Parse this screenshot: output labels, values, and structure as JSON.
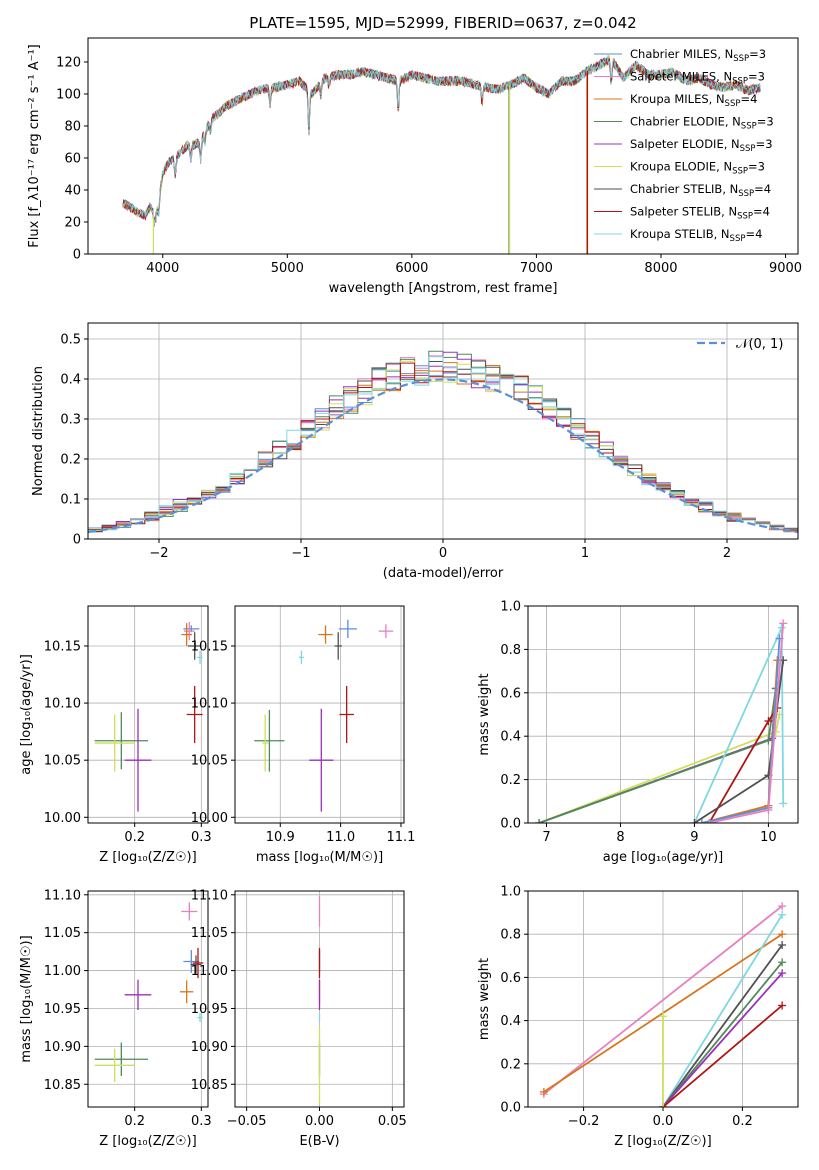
{
  "colors": {
    "Chabrier MILES": "#5b8fd8",
    "Salpeter MILES": "#e87fbf",
    "Kroupa MILES": "#d9761a",
    "Chabrier ELODIE": "#4f8a5a",
    "Salpeter ELODIE": "#9b30b8",
    "Kroupa ELODIE": "#cde05a",
    "Chabrier STELIB": "#505050",
    "Salpeter STELIB": "#b01515",
    "Kroupa STELIB": "#7fd7e0",
    "gaussian": "#5b8fd8",
    "grid": "#b0b0b0"
  },
  "chart_data": [
    {
      "id": "spectrum",
      "type": "line",
      "title": "PLATE=1595, MJD=52999, FIBERID=0637, z=0.042",
      "xlabel": "wavelength [Angstrom, rest frame]",
      "ylabel": "Flux [f_λ10⁻¹⁷ erg cm⁻² s⁻¹ A⁻¹]",
      "xlim": [
        3400,
        9100
      ],
      "ylim": [
        0,
        135
      ],
      "xticks": [
        4000,
        5000,
        6000,
        7000,
        8000,
        9000
      ],
      "yticks": [
        0,
        20,
        40,
        60,
        80,
        100,
        120
      ],
      "grid": false,
      "legend_position": "top-right",
      "legend": [
        {
          "model": "Chabrier MILES",
          "label": "Chabrier MILES, N",
          "sub": "SSP",
          "suffix": "=3"
        },
        {
          "model": "Salpeter MILES",
          "label": "Salpeter MILES, N",
          "sub": "SSP",
          "suffix": "=3"
        },
        {
          "model": "Kroupa MILES",
          "label": "Kroupa MILES, N",
          "sub": "SSP",
          "suffix": "=4"
        },
        {
          "model": "Chabrier ELODIE",
          "label": "Chabrier ELODIE, N",
          "sub": "SSP",
          "suffix": "=3"
        },
        {
          "model": "Salpeter ELODIE",
          "label": "Salpeter ELODIE, N",
          "sub": "SSP",
          "suffix": "=3"
        },
        {
          "model": "Kroupa ELODIE",
          "label": "Kroupa ELODIE, N",
          "sub": "SSP",
          "suffix": "=3"
        },
        {
          "model": "Chabrier STELIB",
          "label": "Chabrier STELIB, N",
          "sub": "SSP",
          "suffix": "=4"
        },
        {
          "model": "Salpeter STELIB",
          "label": "Salpeter STELIB, N",
          "sub": "SSP",
          "suffix": "=4"
        },
        {
          "model": "Kroupa STELIB",
          "label": "Kroupa STELIB, N",
          "sub": "SSP",
          "suffix": "=4"
        }
      ],
      "continuum": [
        [
          3680,
          32
        ],
        [
          3720,
          30
        ],
        [
          3760,
          28
        ],
        [
          3800,
          26
        ],
        [
          3860,
          24
        ],
        [
          3900,
          30
        ],
        [
          3940,
          22
        ],
        [
          3960,
          30
        ],
        [
          4000,
          50
        ],
        [
          4050,
          58
        ],
        [
          4100,
          60
        ],
        [
          4150,
          64
        ],
        [
          4200,
          68
        ],
        [
          4250,
          68
        ],
        [
          4300,
          70
        ],
        [
          4350,
          78
        ],
        [
          4400,
          85
        ],
        [
          4450,
          88
        ],
        [
          4500,
          92
        ],
        [
          4600,
          96
        ],
        [
          4700,
          100
        ],
        [
          4800,
          103
        ],
        [
          4900,
          104
        ],
        [
          5000,
          106
        ],
        [
          5100,
          108
        ],
        [
          5200,
          100
        ],
        [
          5300,
          110
        ],
        [
          5400,
          112
        ],
        [
          5500,
          112
        ],
        [
          5600,
          114
        ],
        [
          5700,
          112
        ],
        [
          5800,
          110
        ],
        [
          5900,
          108
        ],
        [
          6000,
          112
        ],
        [
          6100,
          110
        ],
        [
          6200,
          108
        ],
        [
          6300,
          108
        ],
        [
          6400,
          108
        ],
        [
          6500,
          106
        ],
        [
          6600,
          104
        ],
        [
          6700,
          103
        ],
        [
          6800,
          106
        ],
        [
          6900,
          110
        ],
        [
          7000,
          104
        ],
        [
          7100,
          100
        ],
        [
          7200,
          108
        ],
        [
          7300,
          108
        ],
        [
          7400,
          114
        ],
        [
          7500,
          118
        ],
        [
          7600,
          122
        ],
        [
          7700,
          110
        ],
        [
          7800,
          118
        ],
        [
          7900,
          112
        ],
        [
          8000,
          112
        ],
        [
          8100,
          114
        ],
        [
          8200,
          108
        ],
        [
          8300,
          110
        ],
        [
          8400,
          106
        ],
        [
          8500,
          104
        ],
        [
          8600,
          106
        ],
        [
          8700,
          102
        ],
        [
          8800,
          104
        ]
      ],
      "absorption": [
        [
          3934,
          4
        ],
        [
          3968,
          8
        ],
        [
          4101,
          10
        ],
        [
          4226,
          8
        ],
        [
          4305,
          12
        ],
        [
          4340,
          6
        ],
        [
          4384,
          6
        ],
        [
          4861,
          10
        ],
        [
          5173,
          26
        ],
        [
          5270,
          8
        ],
        [
          5335,
          6
        ],
        [
          5890,
          20
        ],
        [
          6563,
          10
        ],
        [
          7600,
          14
        ]
      ],
      "dropouts": [
        {
          "model": "Kroupa ELODIE",
          "x": 3925,
          "y": 0
        },
        {
          "model": "Chabrier ELODIE",
          "x": 6780,
          "y": 0
        },
        {
          "model": "Kroupa ELODIE",
          "x": 6785,
          "y": 0
        },
        {
          "model": "Kroupa MILES",
          "x": 7405,
          "y": 0
        },
        {
          "model": "Salpeter STELIB",
          "x": 7410,
          "y": 0
        }
      ]
    },
    {
      "id": "residuals",
      "type": "bar",
      "xlabel": "(data-model)/error",
      "ylabel": "Normed distribution",
      "xlim": [
        -2.5,
        2.5
      ],
      "ylim": [
        0,
        0.54
      ],
      "xticks": [
        -2,
        -1,
        0,
        1,
        2
      ],
      "yticks": [
        0.0,
        0.1,
        0.2,
        0.3,
        0.4,
        0.5
      ],
      "grid": true,
      "legend_position": "top-right",
      "gaussian_label": "𝒩(0, 1)",
      "bin_width": 0.1,
      "bin_start": -2.5
    },
    {
      "id": "age-vs-Z",
      "type": "scatter",
      "xlabel": "Z [log₁₀(Z/Z☉)]",
      "ylabel": "age  [log₁₀(age/yr)]",
      "xlim": [
        0.13,
        0.31
      ],
      "ylim": [
        9.995,
        10.185
      ],
      "xticks": [
        0.2,
        0.3
      ],
      "yticks": [
        10.0,
        10.05,
        10.1,
        10.15
      ],
      "grid": true,
      "points": [
        {
          "model": "Chabrier MILES",
          "x": 0.285,
          "y": 10.165,
          "xerr": 0.012,
          "yerr": 0.003
        },
        {
          "model": "Salpeter MILES",
          "x": 0.282,
          "y": 10.163,
          "xerr": 0.008,
          "yerr": 0.008
        },
        {
          "model": "Kroupa MILES",
          "x": 0.278,
          "y": 10.16,
          "xerr": 0.008,
          "yerr": 0.01
        },
        {
          "model": "Chabrier STELIB",
          "x": 0.29,
          "y": 10.15,
          "xerr": 0.01,
          "yerr": 0.012
        },
        {
          "model": "Kroupa STELIB",
          "x": 0.298,
          "y": 10.14,
          "xerr": 0.004,
          "yerr": 0.006
        },
        {
          "model": "Salpeter STELIB",
          "x": 0.29,
          "y": 10.09,
          "xerr": 0.012,
          "yerr": 0.025
        },
        {
          "model": "Chabrier ELODIE",
          "x": 0.18,
          "y": 10.067,
          "xerr": 0.04,
          "yerr": 0.025
        },
        {
          "model": "Kroupa ELODIE",
          "x": 0.17,
          "y": 10.065,
          "xerr": 0.03,
          "yerr": 0.025
        },
        {
          "model": "Salpeter ELODIE",
          "x": 0.205,
          "y": 10.05,
          "xerr": 0.02,
          "yerr": 0.045
        }
      ]
    },
    {
      "id": "age-vs-mass",
      "type": "scatter",
      "xlabel": "mass [log₁₀(M/M☉)]",
      "ylabel": "",
      "xlim": [
        10.825,
        11.105
      ],
      "ylim": [
        9.995,
        10.185
      ],
      "xticks": [
        10.9,
        11.0,
        11.1
      ],
      "yticks": [
        10.0,
        10.05,
        10.1,
        10.15
      ],
      "grid": true,
      "points": [
        {
          "model": "Salpeter MILES",
          "x": 11.075,
          "y": 10.163,
          "xerr": 0.012,
          "yerr": 0.006
        },
        {
          "model": "Chabrier MILES",
          "x": 11.012,
          "y": 10.165,
          "xerr": 0.015,
          "yerr": 0.008
        },
        {
          "model": "Kroupa MILES",
          "x": 10.975,
          "y": 10.16,
          "xerr": 0.012,
          "yerr": 0.008
        },
        {
          "model": "Chabrier STELIB",
          "x": 10.996,
          "y": 10.15,
          "xerr": 0.006,
          "yerr": 0.012
        },
        {
          "model": "Kroupa STELIB",
          "x": 10.935,
          "y": 10.14,
          "xerr": 0.004,
          "yerr": 0.006
        },
        {
          "model": "Salpeter STELIB",
          "x": 11.01,
          "y": 10.09,
          "xerr": 0.012,
          "yerr": 0.025
        },
        {
          "model": "Chabrier ELODIE",
          "x": 10.882,
          "y": 10.067,
          "xerr": 0.025,
          "yerr": 0.027
        },
        {
          "model": "Kroupa ELODIE",
          "x": 10.875,
          "y": 10.065,
          "xerr": 0.005,
          "yerr": 0.025
        },
        {
          "model": "Salpeter ELODIE",
          "x": 10.968,
          "y": 10.05,
          "xerr": 0.02,
          "yerr": 0.045
        }
      ]
    },
    {
      "id": "massweight-vs-age",
      "type": "line",
      "xlabel": "age  [log₁₀(age/yr)]",
      "ylabel": "mass weight",
      "xlim": [
        6.75,
        10.4
      ],
      "ylim": [
        0,
        1
      ],
      "xticks": [
        7,
        8,
        9,
        10
      ],
      "yticks": [
        0.0,
        0.2,
        0.4,
        0.6,
        0.8,
        1.0
      ],
      "grid": true,
      "series": [
        {
          "model": "Kroupa ELODIE",
          "points": [
            [
              6.9,
              0.0
            ],
            [
              10.1,
              0.42
            ],
            [
              10.15,
              0.5
            ]
          ]
        },
        {
          "model": "Salpeter ELODIE",
          "points": [
            [
              6.9,
              0.0
            ],
            [
              10.05,
              0.39
            ],
            [
              10.1,
              0.62
            ]
          ]
        },
        {
          "model": "Chabrier ELODIE",
          "points": [
            [
              6.9,
              0.0
            ],
            [
              10.0,
              0.38
            ],
            [
              10.1,
              0.62
            ]
          ]
        },
        {
          "model": "Kroupa STELIB",
          "points": [
            [
              9.0,
              0.0
            ],
            [
              10.18,
              0.9
            ],
            [
              10.2,
              0.09
            ]
          ]
        },
        {
          "model": "Salpeter STELIB",
          "points": [
            [
              9.2,
              0.0
            ],
            [
              10.0,
              0.47
            ],
            [
              10.12,
              0.53
            ]
          ]
        },
        {
          "model": "Chabrier STELIB",
          "points": [
            [
              9.0,
              0.0
            ],
            [
              10.0,
              0.22
            ],
            [
              10.2,
              0.75
            ]
          ]
        },
        {
          "model": "Kroupa MILES",
          "points": [
            [
              9.1,
              0.0
            ],
            [
              10.0,
              0.08
            ],
            [
              10.12,
              0.75
            ]
          ]
        },
        {
          "model": "Chabrier MILES",
          "points": [
            [
              9.1,
              0.0
            ],
            [
              10.0,
              0.07
            ],
            [
              10.15,
              0.85
            ]
          ]
        },
        {
          "model": "Salpeter MILES",
          "points": [
            [
              9.2,
              0.0
            ],
            [
              10.0,
              0.06
            ],
            [
              10.2,
              0.92
            ]
          ]
        }
      ]
    },
    {
      "id": "mass-vs-Z",
      "type": "scatter",
      "xlabel": "Z [log₁₀(Z/Z☉)]",
      "ylabel": "mass [log₁₀(M/M☉)]",
      "xlim": [
        0.13,
        0.31
      ],
      "ylim": [
        10.82,
        11.105
      ],
      "xticks": [
        0.2,
        0.3
      ],
      "yticks": [
        10.85,
        10.9,
        10.95,
        11.0,
        11.05,
        11.1
      ],
      "grid": true,
      "points": [
        {
          "model": "Salpeter MILES",
          "x": 0.282,
          "y": 11.078,
          "xerr": 0.012,
          "yerr": 0.012
        },
        {
          "model": "Chabrier MILES",
          "x": 0.285,
          "y": 11.012,
          "xerr": 0.012,
          "yerr": 0.015
        },
        {
          "model": "Chabrier STELIB",
          "x": 0.292,
          "y": 11.008,
          "xerr": 0.008,
          "yerr": 0.012
        },
        {
          "model": "Salpeter STELIB",
          "x": 0.295,
          "y": 11.01,
          "xerr": 0.008,
          "yerr": 0.02
        },
        {
          "model": "Kroupa MILES",
          "x": 0.278,
          "y": 10.972,
          "xerr": 0.01,
          "yerr": 0.015
        },
        {
          "model": "Salpeter ELODIE",
          "x": 0.205,
          "y": 10.968,
          "xerr": 0.02,
          "yerr": 0.02
        },
        {
          "model": "Kroupa STELIB",
          "x": 0.298,
          "y": 10.938,
          "xerr": 0.004,
          "yerr": 0.006
        },
        {
          "model": "Chabrier ELODIE",
          "x": 0.18,
          "y": 10.883,
          "xerr": 0.04,
          "yerr": 0.022
        },
        {
          "model": "Kroupa ELODIE",
          "x": 0.17,
          "y": 10.875,
          "xerr": 0.03,
          "yerr": 0.022
        }
      ]
    },
    {
      "id": "mass-vs-EBV",
      "type": "scatter",
      "xlabel": "E(B-V)",
      "ylabel": "",
      "xlim": [
        -0.058,
        0.058
      ],
      "ylim": [
        10.82,
        11.105
      ],
      "xticks": [
        -0.05,
        0.0,
        0.05
      ],
      "yticks": [
        10.85,
        10.9,
        10.95,
        11.0,
        11.05,
        11.1
      ],
      "grid": true,
      "points": [
        {
          "model": "Salpeter MILES",
          "x": 0.0,
          "y": 11.078,
          "xerr": 0.0,
          "yerr": 0.02
        },
        {
          "model": "Chabrier MILES",
          "x": 0.0,
          "y": 11.012,
          "xerr": 0.0,
          "yerr": 0.015
        },
        {
          "model": "Salpeter STELIB",
          "x": 0.0,
          "y": 11.01,
          "xerr": 0.0,
          "yerr": 0.02
        },
        {
          "model": "Kroupa MILES",
          "x": 0.0,
          "y": 10.972,
          "xerr": 0.0,
          "yerr": 0.015
        },
        {
          "model": "Salpeter ELODIE",
          "x": 0.0,
          "y": 10.968,
          "xerr": 0.0,
          "yerr": 0.02
        },
        {
          "model": "Kroupa STELIB",
          "x": 0.0,
          "y": 10.938,
          "xerr": 0.0,
          "yerr": 0.006
        },
        {
          "model": "Chabrier ELODIE",
          "x": 0.0,
          "y": 10.883,
          "xerr": 0.0,
          "yerr": 0.022
        },
        {
          "model": "Kroupa ELODIE",
          "x": 0.0,
          "y": 10.875,
          "xerr": 0.0,
          "yerr": 0.05
        }
      ]
    },
    {
      "id": "massweight-vs-Z",
      "type": "line",
      "xlabel": "Z [log₁₀(Z/Z☉)]",
      "ylabel": "mass weight",
      "xlim": [
        -0.34,
        0.34
      ],
      "ylim": [
        0,
        1
      ],
      "xticks": [
        -0.2,
        0.0,
        0.2
      ],
      "yticks": [
        0.0,
        0.2,
        0.4,
        0.6,
        0.8,
        1.0
      ],
      "grid": true,
      "series": [
        {
          "model": "Salpeter MILES",
          "points": [
            [
              -0.3,
              0.06
            ],
            [
              0.3,
              0.93
            ]
          ]
        },
        {
          "model": "Kroupa MILES",
          "points": [
            [
              -0.3,
              0.07
            ],
            [
              0.3,
              0.8
            ]
          ]
        },
        {
          "model": "Kroupa STELIB",
          "points": [
            [
              0.0,
              0.0
            ],
            [
              0.3,
              0.89
            ]
          ]
        },
        {
          "model": "Chabrier STELIB",
          "points": [
            [
              0.0,
              0.0
            ],
            [
              0.3,
              0.75
            ]
          ]
        },
        {
          "model": "Chabrier ELODIE",
          "points": [
            [
              0.0,
              0.0
            ],
            [
              0.3,
              0.67
            ]
          ]
        },
        {
          "model": "Salpeter ELODIE",
          "points": [
            [
              0.0,
              0.0
            ],
            [
              0.3,
              0.62
            ]
          ]
        },
        {
          "model": "Salpeter STELIB",
          "points": [
            [
              0.0,
              0.0
            ],
            [
              0.3,
              0.47
            ]
          ]
        },
        {
          "model": "Kroupa ELODIE",
          "points": [
            [
              0.0,
              0.42
            ],
            [
              0.0,
              0.0
            ]
          ]
        }
      ]
    }
  ]
}
